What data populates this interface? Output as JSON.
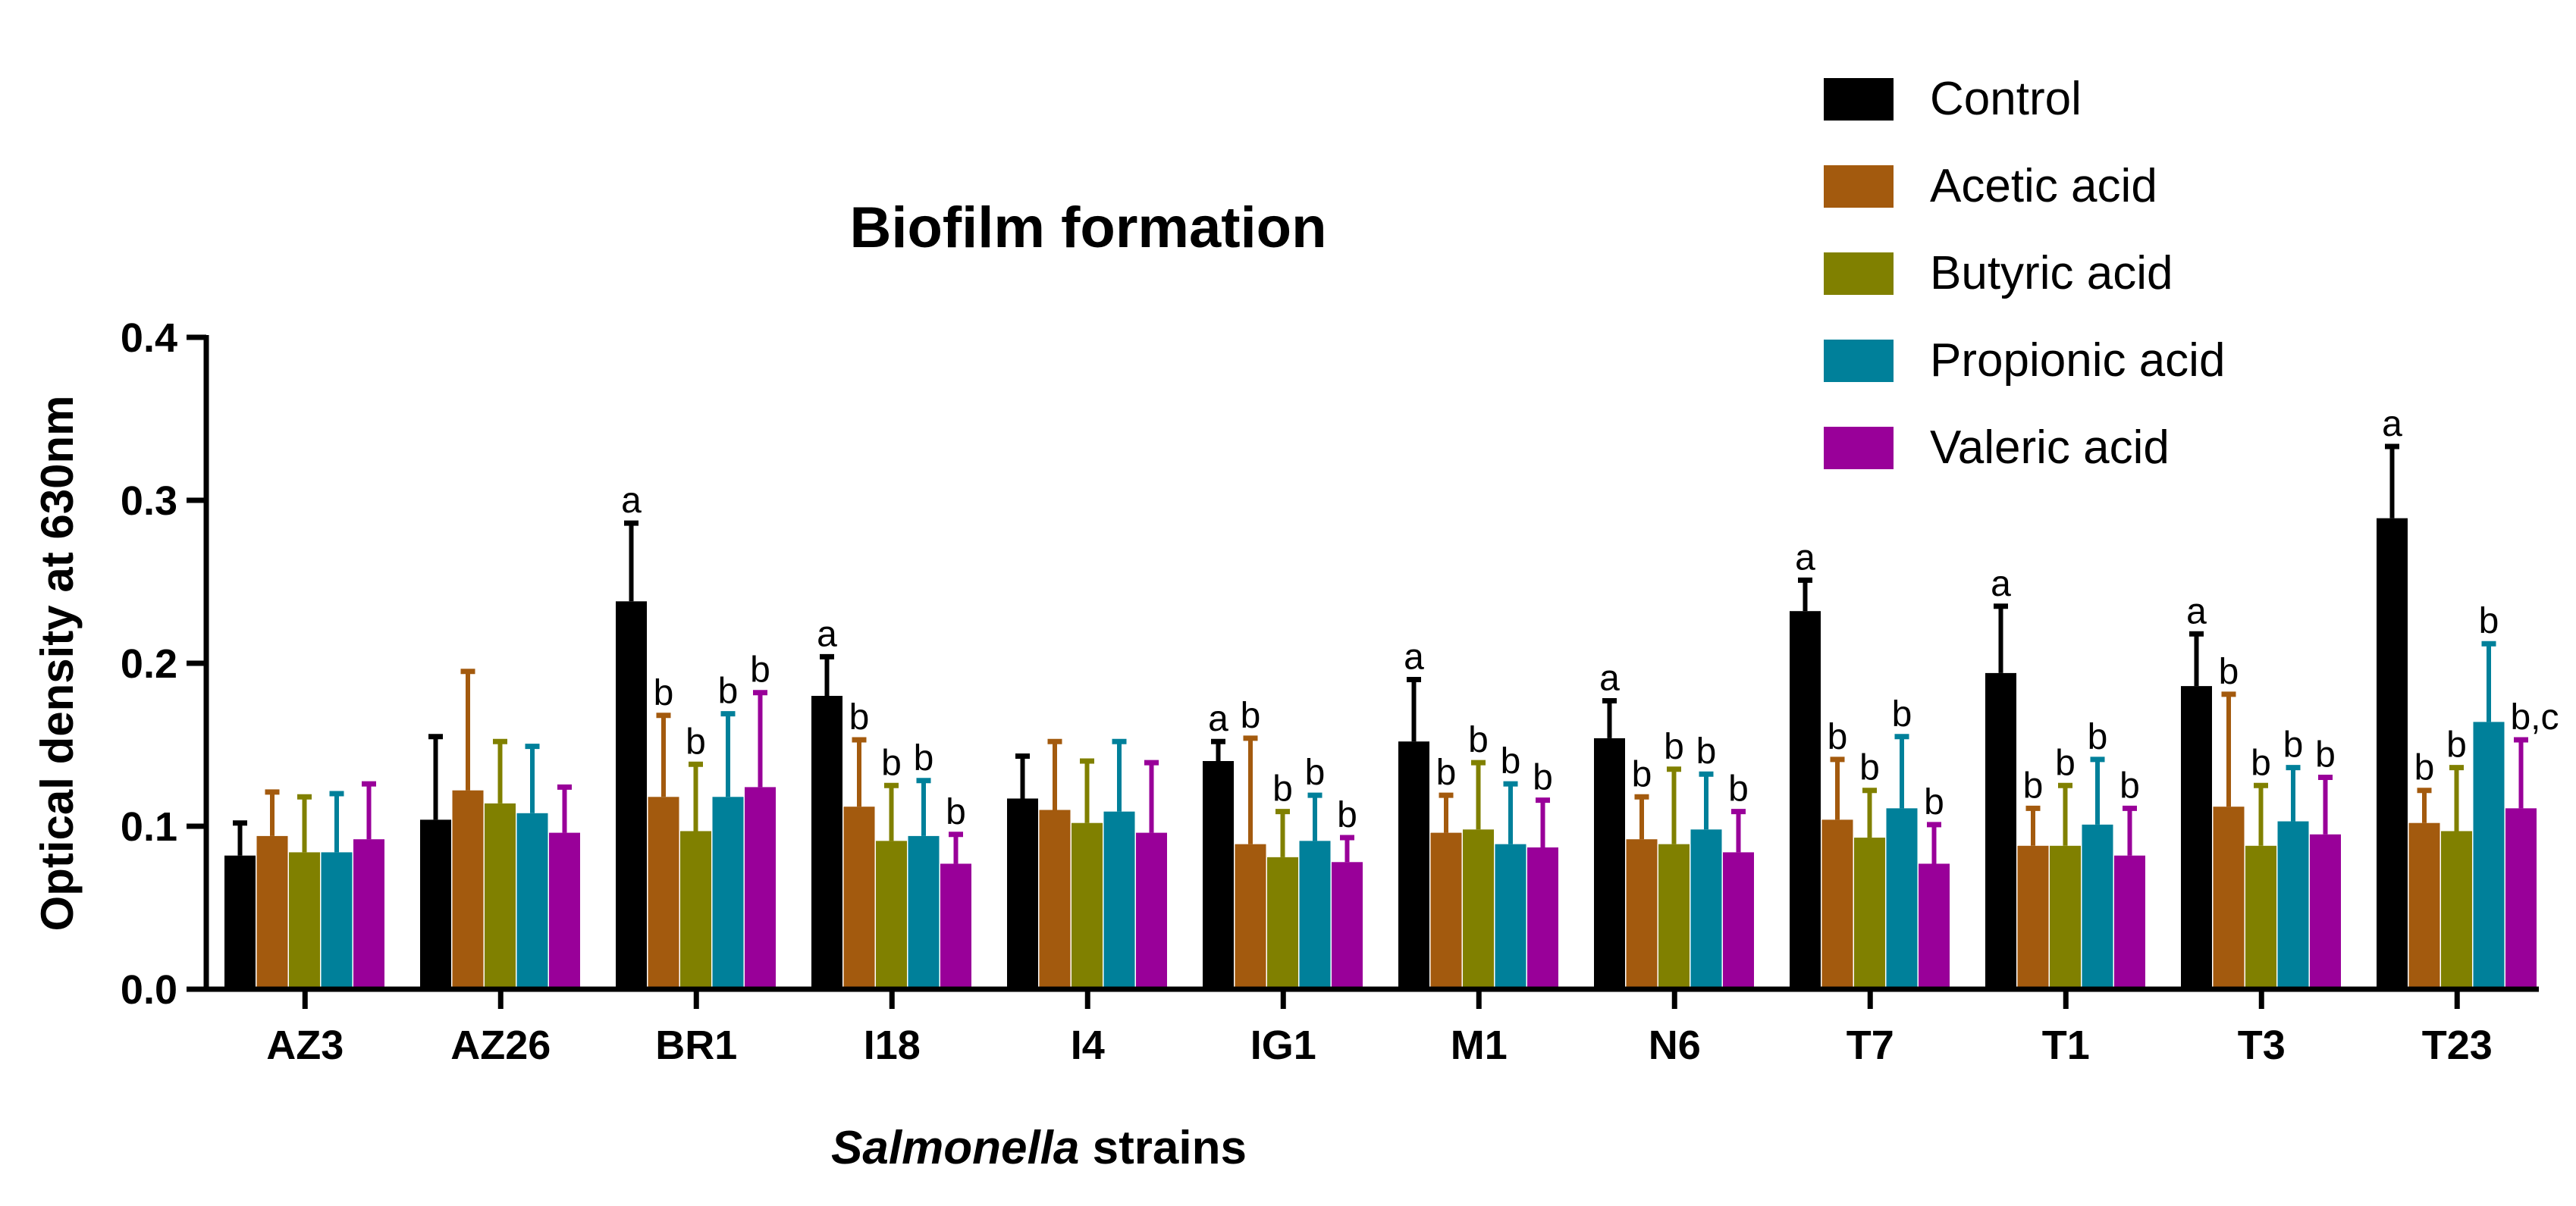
{
  "chart_data": {
    "type": "bar",
    "title": "Biofilm formation",
    "xlabel_italic": "Salmonella",
    "xlabel_rest": " strains",
    "ylabel": "Optical density at 630nm",
    "ylim": [
      0,
      0.4
    ],
    "yticks": [
      "0.0",
      "0.1",
      "0.2",
      "0.3",
      "0.4"
    ],
    "categories": [
      "AZ3",
      "AZ26",
      "BR1",
      "I18",
      "I4",
      "IG1",
      "M1",
      "N6",
      "T7",
      "T1",
      "T3",
      "T23"
    ],
    "series": [
      {
        "name": "Control",
        "color": "#000000",
        "values": [
          0.082,
          0.104,
          0.238,
          0.18,
          0.117,
          0.14,
          0.152,
          0.154,
          0.232,
          0.194,
          0.186,
          0.289
        ],
        "errors": [
          0.02,
          0.051,
          0.048,
          0.024,
          0.026,
          0.012,
          0.038,
          0.023,
          0.019,
          0.041,
          0.032,
          0.044
        ],
        "labels": [
          "",
          "",
          "a",
          "a",
          "",
          "a",
          "a",
          "a",
          "a",
          "a",
          "a",
          "a"
        ]
      },
      {
        "name": "Acetic acid",
        "color": "#a35a0e",
        "values": [
          0.094,
          0.122,
          0.118,
          0.112,
          0.11,
          0.089,
          0.096,
          0.092,
          0.104,
          0.088,
          0.112,
          0.102
        ],
        "errors": [
          0.027,
          0.073,
          0.05,
          0.041,
          0.042,
          0.065,
          0.023,
          0.026,
          0.037,
          0.023,
          0.069,
          0.02
        ],
        "labels": [
          "",
          "",
          "b",
          "b",
          "",
          "b",
          "b",
          "b",
          "b",
          "b",
          "b",
          "b"
        ]
      },
      {
        "name": "Butyric acid",
        "color": "#808000",
        "values": [
          0.084,
          0.114,
          0.097,
          0.091,
          0.102,
          0.081,
          0.098,
          0.089,
          0.093,
          0.088,
          0.088,
          0.097
        ],
        "errors": [
          0.034,
          0.038,
          0.041,
          0.034,
          0.038,
          0.028,
          0.041,
          0.046,
          0.029,
          0.037,
          0.037,
          0.039
        ],
        "labels": [
          "",
          "",
          "b",
          "b",
          "",
          "b",
          "b",
          "b",
          "b",
          "b",
          "b",
          "b"
        ]
      },
      {
        "name": "Propionic acid",
        "color": "#00809a",
        "values": [
          0.084,
          0.108,
          0.118,
          0.094,
          0.109,
          0.091,
          0.089,
          0.098,
          0.111,
          0.101,
          0.103,
          0.164
        ],
        "errors": [
          0.036,
          0.041,
          0.051,
          0.034,
          0.043,
          0.028,
          0.037,
          0.034,
          0.044,
          0.04,
          0.033,
          0.048
        ],
        "labels": [
          "",
          "",
          "b",
          "b",
          "",
          "b",
          "b",
          "b",
          "b",
          "b",
          "b",
          "b"
        ]
      },
      {
        "name": "Valeric acid",
        "color": "#990099",
        "values": [
          0.092,
          0.096,
          0.124,
          0.077,
          0.096,
          0.078,
          0.087,
          0.084,
          0.077,
          0.082,
          0.095,
          0.111
        ],
        "errors": [
          0.034,
          0.028,
          0.058,
          0.018,
          0.043,
          0.015,
          0.029,
          0.025,
          0.024,
          0.029,
          0.035,
          0.042
        ],
        "labels": [
          "",
          "",
          "b",
          "b",
          "",
          "b",
          "b",
          "b",
          "b",
          "b",
          "b",
          "b,c"
        ]
      }
    ],
    "legend_position": "top-right",
    "grid": false
  }
}
